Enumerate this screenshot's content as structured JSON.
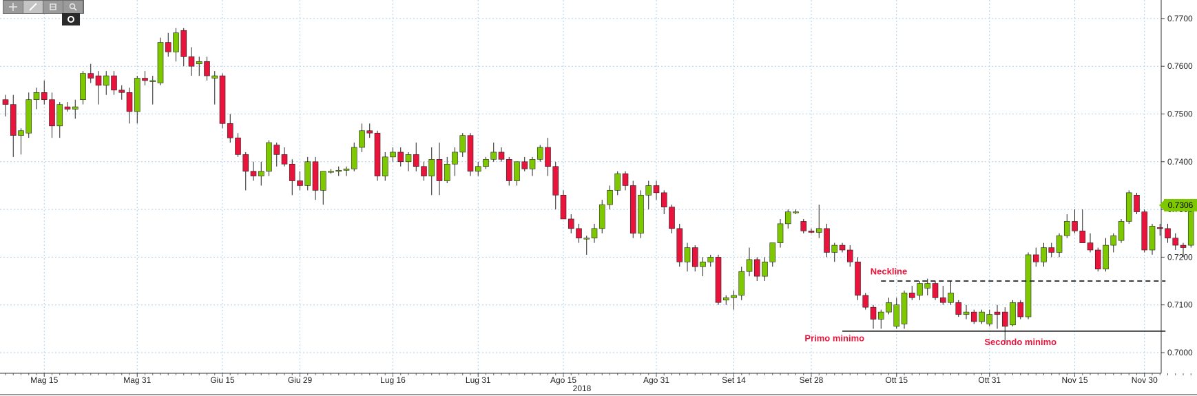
{
  "toolbar": {
    "buttons": [
      {
        "name": "crosshair-icon",
        "active": false
      },
      {
        "name": "draw-line-icon",
        "active": true
      },
      {
        "name": "bar-style-icon",
        "active": false
      },
      {
        "name": "zoom-icon",
        "active": false
      }
    ],
    "sub_button": "record-icon"
  },
  "colors": {
    "up": "#7ec800",
    "down": "#e8143c",
    "grid": "#a9d0ef",
    "annotation": "#e8143c"
  },
  "chart_data": {
    "type": "candlestick",
    "ylim": [
      0.696,
      0.776
    ],
    "y_ticks": [
      "0.7000",
      "0.7100",
      "0.7200",
      "0.7300",
      "0.7400",
      "0.7500",
      "0.7600",
      "0.7700"
    ],
    "x_ticks": [
      {
        "label": "Mag 15",
        "i": 5
      },
      {
        "label": "Mag 31",
        "i": 17
      },
      {
        "label": "Giu 15",
        "i": 28
      },
      {
        "label": "Giu 29",
        "i": 38
      },
      {
        "label": "Lug 16",
        "i": 50
      },
      {
        "label": "Lug 31",
        "i": 61
      },
      {
        "label": "Ago 15",
        "i": 72
      },
      {
        "label": "Ago 31",
        "i": 84
      },
      {
        "label": "Set 14",
        "i": 94
      },
      {
        "label": "Set 28",
        "i": 104
      },
      {
        "label": "Ott 15",
        "i": 115
      },
      {
        "label": "Ott 31",
        "i": 127
      },
      {
        "label": "Nov 15",
        "i": 138
      },
      {
        "label": "Nov 30",
        "i": 147
      }
    ],
    "year_label": "2018",
    "last_price": "0.7306",
    "lines": [
      {
        "label": "Neckline",
        "value": 0.715,
        "style": "dashed",
        "from_i": 113,
        "to_i": 149
      },
      {
        "label": "",
        "value": 0.7045,
        "style": "solid",
        "from_i": 108,
        "to_i": 149
      }
    ],
    "annotations": [
      {
        "text": "Neckline",
        "i": 114,
        "value": 0.7164
      },
      {
        "text": "Primo minimo",
        "i": 107,
        "value": 0.7024
      },
      {
        "text": "Secondo minimo",
        "i": 131,
        "value": 0.7016
      }
    ],
    "ohlc": [
      [
        0.753,
        0.754,
        0.7495,
        0.752
      ],
      [
        0.752,
        0.754,
        0.741,
        0.7455
      ],
      [
        0.7455,
        0.747,
        0.7415,
        0.7465
      ],
      [
        0.746,
        0.7545,
        0.745,
        0.753
      ],
      [
        0.753,
        0.7555,
        0.751,
        0.7545
      ],
      [
        0.7545,
        0.757,
        0.752,
        0.753
      ],
      [
        0.753,
        0.7545,
        0.745,
        0.7475
      ],
      [
        0.7475,
        0.7525,
        0.745,
        0.752
      ],
      [
        0.7515,
        0.7525,
        0.7505,
        0.751
      ],
      [
        0.751,
        0.753,
        0.749,
        0.7515
      ],
      [
        0.753,
        0.759,
        0.752,
        0.7585
      ],
      [
        0.7585,
        0.7605,
        0.7565,
        0.7575
      ],
      [
        0.758,
        0.759,
        0.752,
        0.756
      ],
      [
        0.756,
        0.759,
        0.754,
        0.758
      ],
      [
        0.758,
        0.759,
        0.754,
        0.755
      ],
      [
        0.755,
        0.756,
        0.753,
        0.7545
      ],
      [
        0.7545,
        0.7555,
        0.748,
        0.7505
      ],
      [
        0.7505,
        0.758,
        0.748,
        0.7575
      ],
      [
        0.7575,
        0.759,
        0.756,
        0.757
      ],
      [
        0.757,
        0.758,
        0.752,
        0.757
      ],
      [
        0.7565,
        0.766,
        0.756,
        0.765
      ],
      [
        0.765,
        0.767,
        0.762,
        0.763
      ],
      [
        0.763,
        0.768,
        0.761,
        0.767
      ],
      [
        0.7675,
        0.768,
        0.76,
        0.762
      ],
      [
        0.762,
        0.764,
        0.758,
        0.76
      ],
      [
        0.7605,
        0.762,
        0.758,
        0.761
      ],
      [
        0.761,
        0.762,
        0.757,
        0.758
      ],
      [
        0.7575,
        0.759,
        0.752,
        0.758
      ],
      [
        0.758,
        0.7585,
        0.747,
        0.748
      ],
      [
        0.748,
        0.75,
        0.744,
        0.745
      ],
      [
        0.745,
        0.746,
        0.741,
        0.7415
      ],
      [
        0.7415,
        0.742,
        0.734,
        0.738
      ],
      [
        0.738,
        0.74,
        0.736,
        0.737
      ],
      [
        0.737,
        0.74,
        0.735,
        0.738
      ],
      [
        0.738,
        0.7445,
        0.737,
        0.744
      ],
      [
        0.7435,
        0.744,
        0.739,
        0.7415
      ],
      [
        0.7415,
        0.743,
        0.739,
        0.7395
      ],
      [
        0.7395,
        0.7405,
        0.733,
        0.736
      ],
      [
        0.736,
        0.738,
        0.734,
        0.735
      ],
      [
        0.735,
        0.741,
        0.734,
        0.74
      ],
      [
        0.74,
        0.741,
        0.732,
        0.734
      ],
      [
        0.734,
        0.738,
        0.731,
        0.738
      ],
      [
        0.738,
        0.7385,
        0.7375,
        0.738
      ],
      [
        0.738,
        0.739,
        0.737,
        0.7382
      ],
      [
        0.7382,
        0.739,
        0.737,
        0.7385
      ],
      [
        0.7385,
        0.744,
        0.738,
        0.743
      ],
      [
        0.743,
        0.748,
        0.742,
        0.7465
      ],
      [
        0.7465,
        0.748,
        0.745,
        0.746
      ],
      [
        0.746,
        0.7465,
        0.736,
        0.737
      ],
      [
        0.737,
        0.742,
        0.736,
        0.741
      ],
      [
        0.741,
        0.743,
        0.74,
        0.742
      ],
      [
        0.742,
        0.743,
        0.739,
        0.74
      ],
      [
        0.74,
        0.742,
        0.738,
        0.7415
      ],
      [
        0.7415,
        0.744,
        0.738,
        0.739
      ],
      [
        0.739,
        0.74,
        0.736,
        0.737
      ],
      [
        0.737,
        0.743,
        0.733,
        0.7405
      ],
      [
        0.7405,
        0.744,
        0.733,
        0.736
      ],
      [
        0.736,
        0.741,
        0.7355,
        0.7395
      ],
      [
        0.7395,
        0.743,
        0.737,
        0.742
      ],
      [
        0.742,
        0.746,
        0.741,
        0.7455
      ],
      [
        0.7455,
        0.746,
        0.737,
        0.738
      ],
      [
        0.738,
        0.74,
        0.737,
        0.739
      ],
      [
        0.739,
        0.741,
        0.7385,
        0.7405
      ],
      [
        0.7405,
        0.744,
        0.74,
        0.742
      ],
      [
        0.742,
        0.743,
        0.74,
        0.7405
      ],
      [
        0.7405,
        0.741,
        0.735,
        0.736
      ],
      [
        0.736,
        0.74,
        0.735,
        0.74
      ],
      [
        0.74,
        0.741,
        0.738,
        0.7385
      ],
      [
        0.7385,
        0.741,
        0.737,
        0.7405
      ],
      [
        0.7405,
        0.7435,
        0.74,
        0.743
      ],
      [
        0.743,
        0.745,
        0.737,
        0.739
      ],
      [
        0.739,
        0.74,
        0.73,
        0.733
      ],
      [
        0.733,
        0.734,
        0.728,
        0.728
      ],
      [
        0.728,
        0.729,
        0.725,
        0.726
      ],
      [
        0.726,
        0.727,
        0.723,
        0.724
      ],
      [
        0.724,
        0.7245,
        0.7205,
        0.724
      ],
      [
        0.724,
        0.727,
        0.723,
        0.726
      ],
      [
        0.726,
        0.732,
        0.725,
        0.731
      ],
      [
        0.731,
        0.735,
        0.73,
        0.734
      ],
      [
        0.734,
        0.738,
        0.733,
        0.7375
      ],
      [
        0.7375,
        0.738,
        0.734,
        0.735
      ],
      [
        0.735,
        0.736,
        0.724,
        0.725
      ],
      [
        0.725,
        0.734,
        0.724,
        0.733
      ],
      [
        0.733,
        0.736,
        0.73,
        0.735
      ],
      [
        0.735,
        0.736,
        0.732,
        0.7335
      ],
      [
        0.7335,
        0.734,
        0.729,
        0.7305
      ],
      [
        0.7305,
        0.731,
        0.725,
        0.726
      ],
      [
        0.726,
        0.727,
        0.718,
        0.719
      ],
      [
        0.719,
        0.723,
        0.717,
        0.722
      ],
      [
        0.722,
        0.7225,
        0.717,
        0.718
      ],
      [
        0.718,
        0.72,
        0.716,
        0.719
      ],
      [
        0.719,
        0.7205,
        0.718,
        0.72
      ],
      [
        0.72,
        0.7205,
        0.71,
        0.7105
      ],
      [
        0.711,
        0.712,
        0.71,
        0.7115
      ],
      [
        0.7115,
        0.713,
        0.709,
        0.712
      ],
      [
        0.712,
        0.718,
        0.711,
        0.717
      ],
      [
        0.717,
        0.722,
        0.716,
        0.7195
      ],
      [
        0.7195,
        0.72,
        0.715,
        0.716
      ],
      [
        0.716,
        0.72,
        0.715,
        0.719
      ],
      [
        0.719,
        0.723,
        0.718,
        0.723
      ],
      [
        0.723,
        0.728,
        0.722,
        0.727
      ],
      [
        0.727,
        0.73,
        0.726,
        0.7295
      ],
      [
        0.7295,
        0.73,
        0.729,
        0.7295
      ],
      [
        0.7275,
        0.728,
        0.725,
        0.7255
      ],
      [
        0.7255,
        0.726,
        0.725,
        0.7252
      ],
      [
        0.7252,
        0.731,
        0.724,
        0.726
      ],
      [
        0.726,
        0.727,
        0.72,
        0.721
      ],
      [
        0.721,
        0.723,
        0.719,
        0.7225
      ],
      [
        0.7225,
        0.723,
        0.721,
        0.7215
      ],
      [
        0.7215,
        0.7225,
        0.718,
        0.719
      ],
      [
        0.719,
        0.72,
        0.711,
        0.712
      ],
      [
        0.712,
        0.7125,
        0.709,
        0.7095
      ],
      [
        0.7095,
        0.71,
        0.705,
        0.707
      ],
      [
        0.707,
        0.709,
        0.705,
        0.7085
      ],
      [
        0.7085,
        0.7115,
        0.708,
        0.7105
      ],
      [
        0.7055,
        0.7115,
        0.705,
        0.71
      ],
      [
        0.706,
        0.713,
        0.705,
        0.7125
      ],
      [
        0.7125,
        0.714,
        0.711,
        0.7115
      ],
      [
        0.712,
        0.715,
        0.711,
        0.7145
      ],
      [
        0.7135,
        0.7155,
        0.712,
        0.7145
      ],
      [
        0.7145,
        0.715,
        0.711,
        0.7115
      ],
      [
        0.7115,
        0.714,
        0.71,
        0.7105
      ],
      [
        0.7105,
        0.715,
        0.71,
        0.7125
      ],
      [
        0.7105,
        0.711,
        0.7075,
        0.708
      ],
      [
        0.708,
        0.71,
        0.707,
        0.7085
      ],
      [
        0.7085,
        0.709,
        0.706,
        0.7065
      ],
      [
        0.7065,
        0.709,
        0.706,
        0.7085
      ],
      [
        0.706,
        0.709,
        0.7055,
        0.708
      ],
      [
        0.7085,
        0.71,
        0.705,
        0.708
      ],
      [
        0.7085,
        0.7095,
        0.702,
        0.7055
      ],
      [
        0.7058,
        0.711,
        0.7055,
        0.7105
      ],
      [
        0.7105,
        0.711,
        0.707,
        0.7075
      ],
      [
        0.7075,
        0.721,
        0.707,
        0.7205
      ],
      [
        0.7205,
        0.722,
        0.718,
        0.719
      ],
      [
        0.719,
        0.723,
        0.718,
        0.722
      ],
      [
        0.722,
        0.723,
        0.72,
        0.721
      ],
      [
        0.721,
        0.725,
        0.72,
        0.7245
      ],
      [
        0.7245,
        0.729,
        0.724,
        0.7275
      ],
      [
        0.7275,
        0.73,
        0.725,
        0.7255
      ],
      [
        0.7255,
        0.73,
        0.723,
        0.723
      ],
      [
        0.723,
        0.725,
        0.721,
        0.7215
      ],
      [
        0.7215,
        0.722,
        0.717,
        0.7175
      ],
      [
        0.7175,
        0.724,
        0.717,
        0.7225
      ],
      [
        0.7225,
        0.725,
        0.721,
        0.7245
      ],
      [
        0.7235,
        0.728,
        0.723,
        0.7275
      ],
      [
        0.7275,
        0.734,
        0.727,
        0.7335
      ],
      [
        0.733,
        0.7335,
        0.729,
        0.7295
      ],
      [
        0.7295,
        0.73,
        0.721,
        0.7215
      ],
      [
        0.7215,
        0.727,
        0.7205,
        0.7265
      ],
      [
        0.7262,
        0.727,
        0.7245,
        0.726
      ],
      [
        0.726,
        0.727,
        0.723,
        0.724
      ],
      [
        0.724,
        0.725,
        0.7215,
        0.7225
      ],
      [
        0.7225,
        0.723,
        0.72,
        0.722
      ],
      [
        0.7225,
        0.731,
        0.722,
        0.7305
      ],
      [
        0.7305,
        0.732,
        0.729,
        0.732
      ],
      [
        0.732,
        0.7325,
        0.729,
        0.7306
      ]
    ]
  }
}
